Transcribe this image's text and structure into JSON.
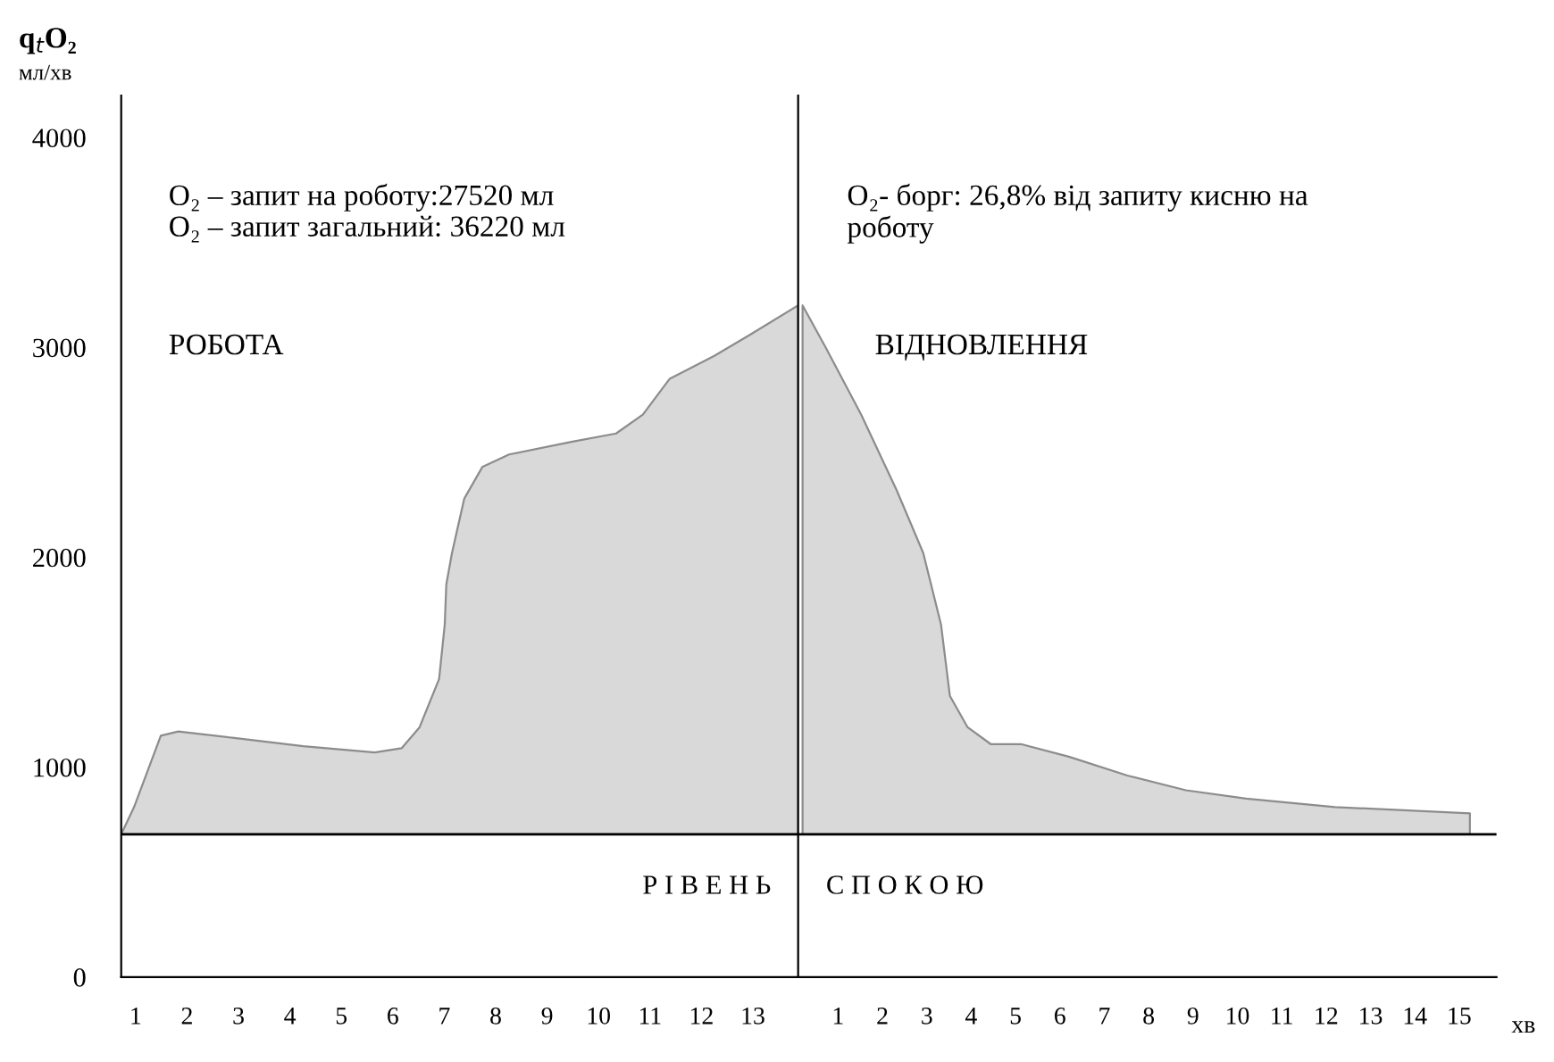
{
  "chart_data": [
    {
      "type": "area",
      "ylabel": "q$_{t}$O₂\nмл/хв",
      "x": [
        0.72,
        0.97,
        1.49,
        1.83,
        2.88,
        4.26,
        5.65,
        6.17,
        6.52,
        6.9,
        7.01,
        7.04,
        7.15,
        7.39,
        7.74,
        8.26,
        9.47,
        10.34,
        10.86,
        11.38,
        12.25,
        12.94,
        13.88
      ],
      "series": [
        {
          "color": "#d9d9d9",
          "values": [
            680,
            810,
            1150,
            1170,
            1140,
            1100,
            1070,
            1090,
            1190,
            1420,
            1680,
            1870,
            2020,
            2280,
            2430,
            2490,
            2550,
            2590,
            2680,
            2850,
            2960,
            3060,
            3200
          ]
        }
      ],
      "xlim": [
        0.72,
        13.88
      ],
      "ylim": [
        0,
        4200
      ],
      "yticks": [
        0,
        1000,
        2000,
        3000,
        4000
      ],
      "xticks": [
        1,
        2,
        3,
        4,
        5,
        6,
        7,
        8,
        9,
        10,
        11,
        12,
        13
      ],
      "ref_lines": [
        {
          "axis": "y",
          "value": 680,
          "color": "#000000"
        }
      ],
      "annotations": [
        "O₂ – запит на роботу:27520 мл\nO₂ – запит загальний: 36220 мл",
        "РОБОТА",
        "Р І В Е Н Ь"
      ],
      "grid": false
    },
    {
      "type": "area",
      "xlabel": "хв",
      "x": [
        0.2,
        0.72,
        1.52,
        2.32,
        2.92,
        3.32,
        3.52,
        3.92,
        4.44,
        5.12,
        6.2,
        7.52,
        8.84,
        10.2,
        12.2,
        15.24
      ],
      "series": [
        {
          "color": "#d9d9d9",
          "values": [
            3200,
            3000,
            2680,
            2320,
            2020,
            1680,
            1340,
            1190,
            1110,
            1110,
            1050,
            960,
            890,
            850,
            810,
            780
          ]
        }
      ],
      "xlim": [
        0.1,
        15.84
      ],
      "ylim": [
        0,
        4200
      ],
      "tick_labels": "x",
      "xticks": [
        1,
        2,
        3,
        4,
        5,
        6,
        7,
        8,
        9,
        10,
        11,
        12,
        13,
        14,
        15
      ],
      "ref_lines": [
        {
          "axis": "y",
          "value": 680,
          "color": "#000000"
        }
      ],
      "annotations": [
        "O₂- борг: 26,8% від запиту кисню на\nроботу",
        "ВІДНОВЛЕННЯ",
        "С П О К О Ю"
      ],
      "grid": false
    }
  ]
}
